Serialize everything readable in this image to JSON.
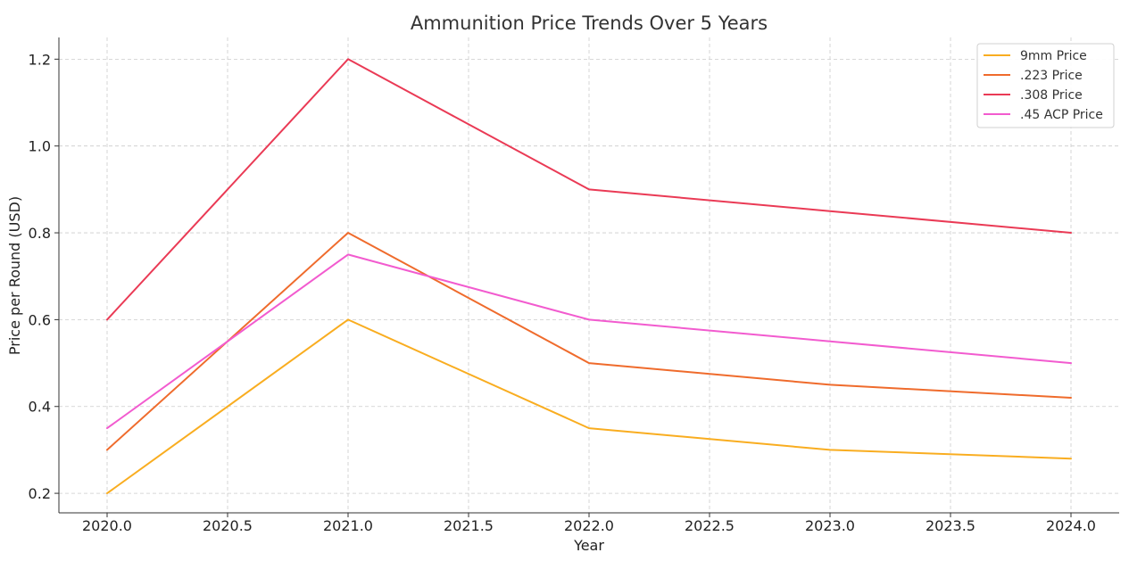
{
  "chart_data": {
    "type": "line",
    "title": "Ammunition Price Trends Over 5 Years",
    "xlabel": "Year",
    "ylabel": "Price per Round (USD)",
    "x": [
      2020,
      2021,
      2022,
      2023,
      2024
    ],
    "x_ticks": [
      "2020.0",
      "2020.5",
      "2021.0",
      "2021.5",
      "2022.0",
      "2022.5",
      "2023.0",
      "2023.5",
      "2024.0"
    ],
    "y_ticks": [
      "0.2",
      "0.4",
      "0.6",
      "0.8",
      "1.0",
      "1.2"
    ],
    "xlim": [
      2019.8,
      2024.2
    ],
    "ylim": [
      0.155,
      1.25
    ],
    "grid": true,
    "legend_position": "top-right",
    "series": [
      {
        "name": "9mm Price",
        "color": "#f9ad20",
        "values": [
          0.2,
          0.6,
          0.35,
          0.3,
          0.28
        ]
      },
      {
        "name": ".223 Price",
        "color": "#ef6b2c",
        "values": [
          0.3,
          0.8,
          0.5,
          0.45,
          0.42
        ]
      },
      {
        "name": ".308 Price",
        "color": "#ea3a55",
        "values": [
          0.6,
          1.2,
          0.9,
          0.85,
          0.8
        ]
      },
      {
        "name": ".45 ACP Price",
        "color": "#f25bcf",
        "values": [
          0.35,
          0.75,
          0.6,
          0.55,
          0.5
        ]
      }
    ]
  }
}
